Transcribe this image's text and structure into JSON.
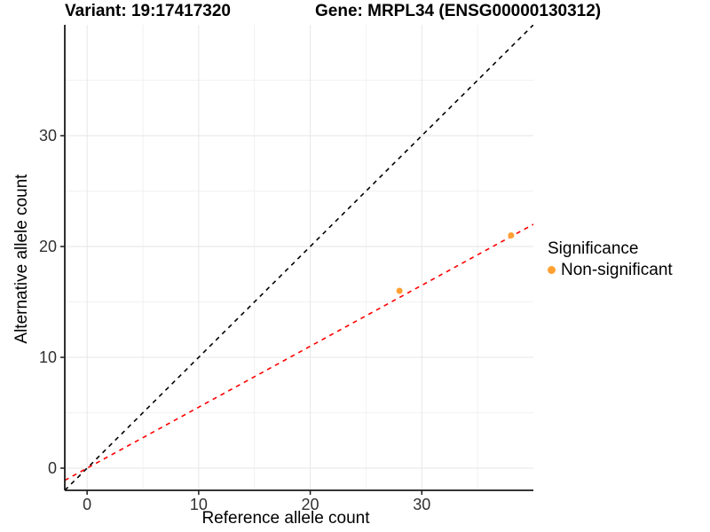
{
  "header": {
    "variant_title": "Variant: 19:17417320",
    "gene_title": "Gene: MRPL34 (ENSG00000130312)"
  },
  "chart_data": {
    "type": "scatter",
    "title": "Variant: 19:17417320 / Gene: MRPL34 (ENSG00000130312)",
    "xlabel": "Reference allele count",
    "ylabel": "Alternative allele count",
    "xlim": [
      -2,
      40
    ],
    "ylim": [
      -2,
      40
    ],
    "xticks": [
      0,
      10,
      20,
      30
    ],
    "yticks": [
      0,
      10,
      20,
      30
    ],
    "minor_gridlines": [
      5,
      15,
      25,
      35
    ],
    "grid": "major+minor",
    "series": [
      {
        "name": "Non-significant",
        "marker": "circle",
        "color": "#FFA033",
        "points": [
          {
            "x": 28,
            "y": 16
          },
          {
            "x": 38,
            "y": 21
          }
        ]
      }
    ],
    "lines": [
      {
        "name": "identity-line",
        "slope": 1,
        "intercept": 0,
        "color": "#000000",
        "style": "dashed"
      },
      {
        "name": "fit-line",
        "slope": 0.55,
        "intercept": 0,
        "color": "#FF0000",
        "style": "dashed"
      }
    ],
    "legend": {
      "title": "Significance",
      "position": "right",
      "entries": [
        {
          "label": "Non-significant",
          "color": "#FFA033"
        }
      ]
    },
    "colors": {
      "background": "#FFFFFF",
      "grid_major": "#E6E6E6",
      "grid_minor": "#F2F2F2",
      "axis_line": "#1A1A1A",
      "tick_label": "#303030"
    }
  }
}
